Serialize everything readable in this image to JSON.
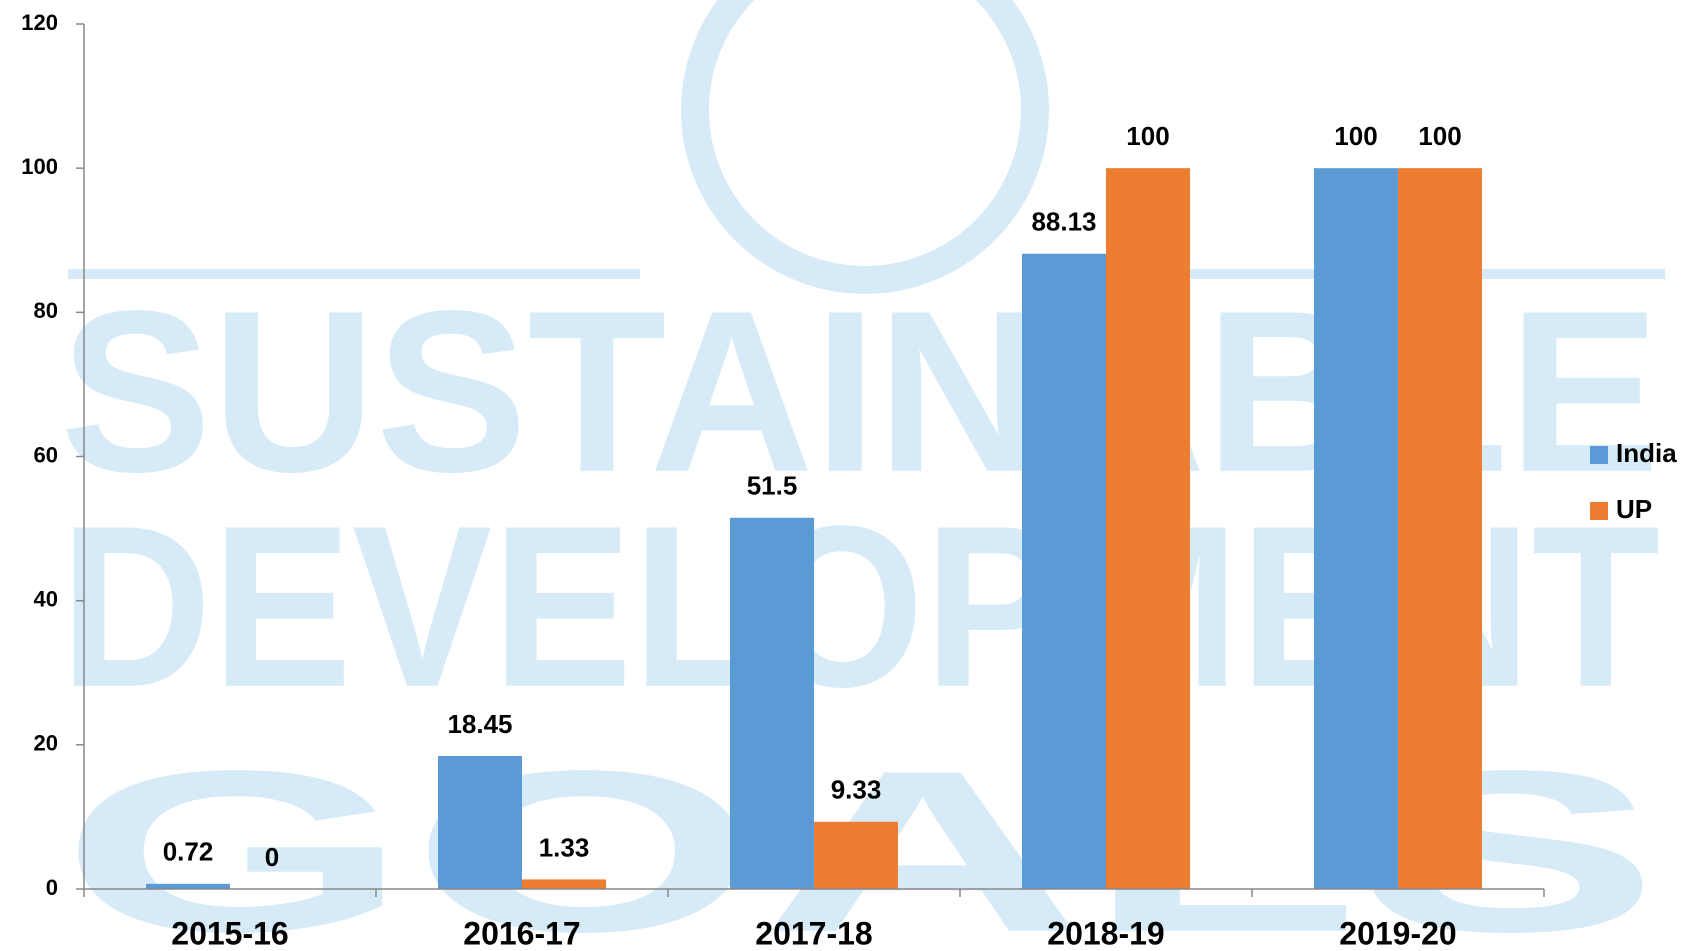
{
  "chart_data": {
    "type": "bar",
    "watermark": [
      "SUSTAINABLE",
      "DEVELOPMENT",
      "GOALS"
    ],
    "categories": [
      "2015-16",
      "2016-17",
      "2017-18",
      "2018-19",
      "2019-20"
    ],
    "series": [
      {
        "name": "India",
        "color": "#5b9bd5",
        "values": [
          0.72,
          18.45,
          51.5,
          88.13,
          100
        ]
      },
      {
        "name": "UP",
        "color": "#ed7d31",
        "values": [
          0,
          1.33,
          9.33,
          100,
          100
        ]
      }
    ],
    "ylim": [
      0,
      120
    ],
    "yticks": [
      0,
      20,
      40,
      60,
      80,
      100,
      120
    ],
    "grid": false,
    "legend": "right",
    "data_labels": true
  }
}
